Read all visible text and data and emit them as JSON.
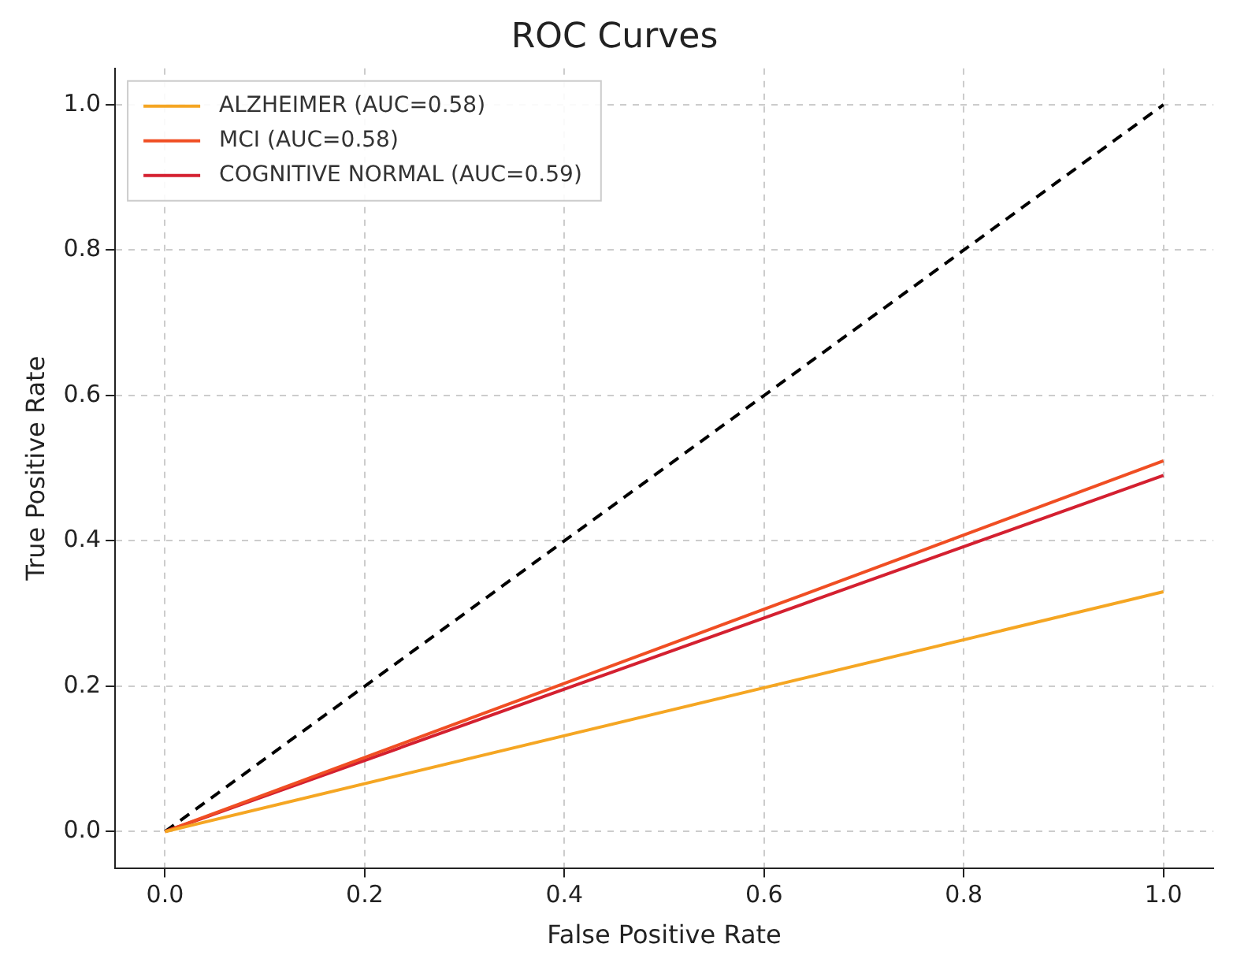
{
  "chart_data": {
    "type": "line",
    "title": "ROC Curves",
    "xlabel": "False Positive Rate",
    "ylabel": "True Positive Rate",
    "xlim": [
      -0.05,
      1.05
    ],
    "ylim": [
      -0.05,
      1.05
    ],
    "xticks": [
      {
        "value": 0,
        "label": "0.0"
      },
      {
        "value": 0.2,
        "label": "0.2"
      },
      {
        "value": 0.4,
        "label": "0.4"
      },
      {
        "value": 0.6,
        "label": "0.6"
      },
      {
        "value": 0.8,
        "label": "0.8"
      },
      {
        "value": 1,
        "label": "1.0"
      }
    ],
    "yticks": [
      {
        "value": 0,
        "label": "0.0"
      },
      {
        "value": 0.2,
        "label": "0.2"
      },
      {
        "value": 0.4,
        "label": "0.4"
      },
      {
        "value": 0.6,
        "label": "0.6"
      },
      {
        "value": 0.8,
        "label": "0.8"
      },
      {
        "value": 1,
        "label": "1.0"
      }
    ],
    "grid": true,
    "legend": "top left",
    "marker": "none",
    "x": [
      0,
      1
    ],
    "series": [
      {
        "name": "ALZHEIMER (AUC=0.58)",
        "color": "#f5a623",
        "values": [
          0,
          0.33
        ]
      },
      {
        "name": "MCI (AUC=0.58)",
        "color": "#f04e23",
        "values": [
          0,
          0.51
        ]
      },
      {
        "name": "COGNITIVE NORMAL (AUC=0.59)",
        "color": "#d42030",
        "values": [
          0,
          0.49
        ]
      },
      {
        "color": "#000000",
        "values": [
          0,
          1
        ],
        "line_style": "dashed"
      }
    ]
  }
}
